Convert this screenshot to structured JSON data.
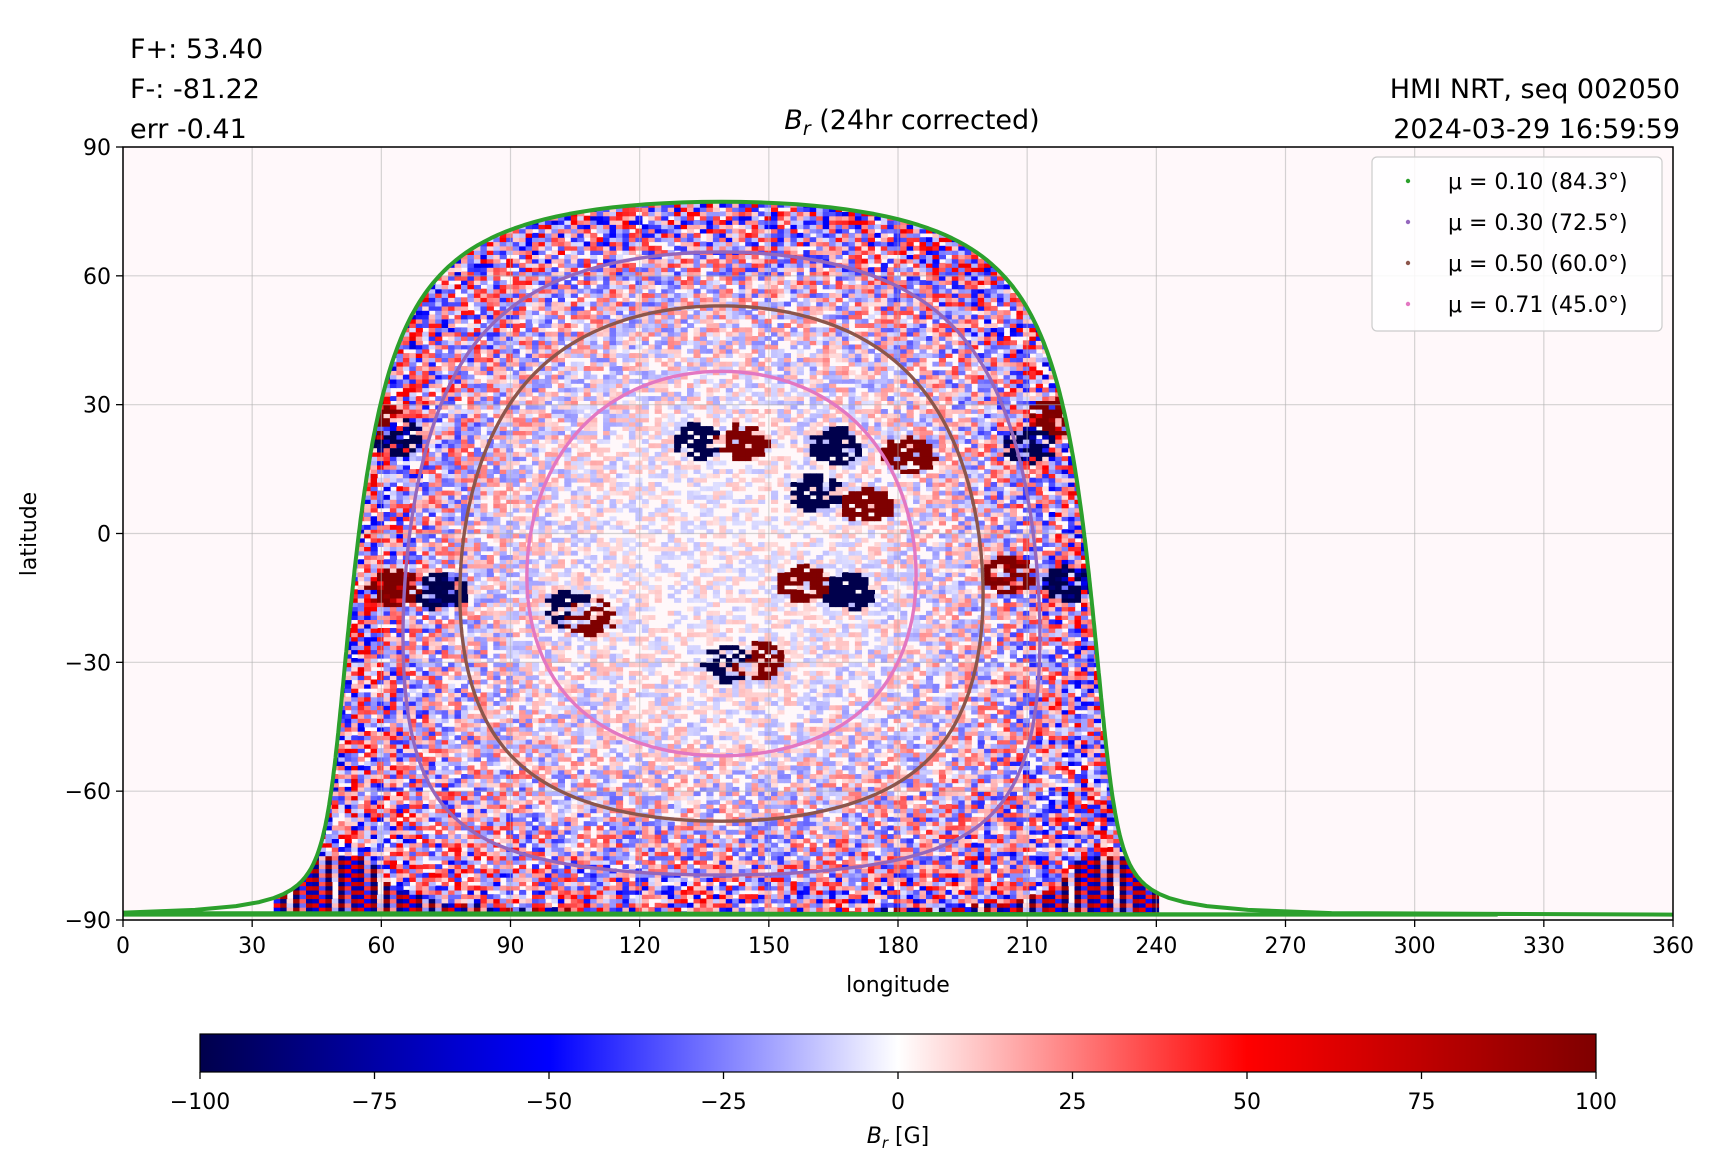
{
  "stats": {
    "f_plus": "F+: 53.40",
    "f_minus": "F-: -81.22",
    "err": "err -0.41"
  },
  "source": {
    "instrument": "HMI NRT, seq 002050",
    "timestamp": "2024-03-29 16:59:59"
  },
  "chart_data": {
    "type": "heatmap",
    "title": {
      "symbol": "B",
      "subscript": "r",
      "text": " (24hr corrected)"
    },
    "xlabel": "longitude",
    "ylabel": "latitude",
    "xlim": [
      0,
      360
    ],
    "ylim": [
      -90,
      90
    ],
    "xticks": [
      0,
      30,
      60,
      90,
      120,
      150,
      180,
      210,
      240,
      270,
      300,
      330,
      360
    ],
    "yticks": [
      -90,
      -60,
      -30,
      0,
      30,
      60,
      90
    ],
    "ytick_labels": [
      "−90",
      "−60",
      "−30",
      "0",
      "30",
      "60",
      "90"
    ],
    "grid": true,
    "legend_position": "top-right",
    "disk_center": {
      "lon": 139,
      "lat": -7
    },
    "contours": [
      {
        "label": "μ = 0.10 (84.3°)",
        "mu": 0.1,
        "color": "#2ca02c"
      },
      {
        "label": "μ = 0.30 (72.5°)",
        "mu": 0.3,
        "color": "#9467bd"
      },
      {
        "label": "μ = 0.50 (60.0°)",
        "mu": 0.5,
        "color": "#8c564b"
      },
      {
        "label": "μ = 0.71 (45.0°)",
        "mu": 0.71,
        "color": "#e377c2"
      }
    ],
    "active_regions": [
      {
        "lon": 140,
        "lat": 22,
        "pos": [
          143,
          21
        ],
        "neg": [
          133,
          21
        ]
      },
      {
        "lon": 172,
        "lat": 22,
        "pos": [
          182,
          18
        ],
        "neg": [
          165,
          20
        ]
      },
      {
        "lon": 155,
        "lat": 5,
        "pos": [
          172,
          6
        ],
        "neg": [
          160,
          9
        ]
      },
      {
        "lon": 220,
        "lat": -11,
        "pos": [
          205,
          -10
        ],
        "neg": [
          219,
          -12
        ]
      },
      {
        "lon": 212,
        "lat": 22,
        "pos": [
          216,
          27
        ],
        "neg": [
          210,
          20
        ]
      },
      {
        "lon": 68,
        "lat": -13,
        "pos": [
          62,
          -13
        ],
        "neg": [
          73,
          -14
        ]
      },
      {
        "lon": 60,
        "lat": 24,
        "pos": [
          58,
          26
        ],
        "neg": [
          63,
          22
        ]
      },
      {
        "lon": 160,
        "lat": -15,
        "pos": [
          157,
          -12
        ],
        "neg": [
          168,
          -14
        ]
      },
      {
        "lon": 105,
        "lat": -18,
        "pos": [
          108,
          -20
        ],
        "neg": [
          103,
          -18
        ]
      },
      {
        "lon": 147,
        "lat": -30,
        "pos": [
          147,
          -30
        ],
        "neg": [
          140,
          -31
        ]
      }
    ],
    "colorbar": {
      "min": -100,
      "max": 100,
      "ticks": [
        -100,
        -75,
        -50,
        -25,
        0,
        25,
        50,
        75,
        100
      ],
      "tick_labels": [
        "−100",
        "−75",
        "−50",
        "−25",
        "0",
        "25",
        "50",
        "75",
        "100"
      ],
      "label_symbol": "B",
      "label_subscript": "r",
      "label_unit": " [G]",
      "colors": [
        "#00004c",
        "#0000ff",
        "#ffffff",
        "#ff0000",
        "#7f0000"
      ]
    }
  }
}
